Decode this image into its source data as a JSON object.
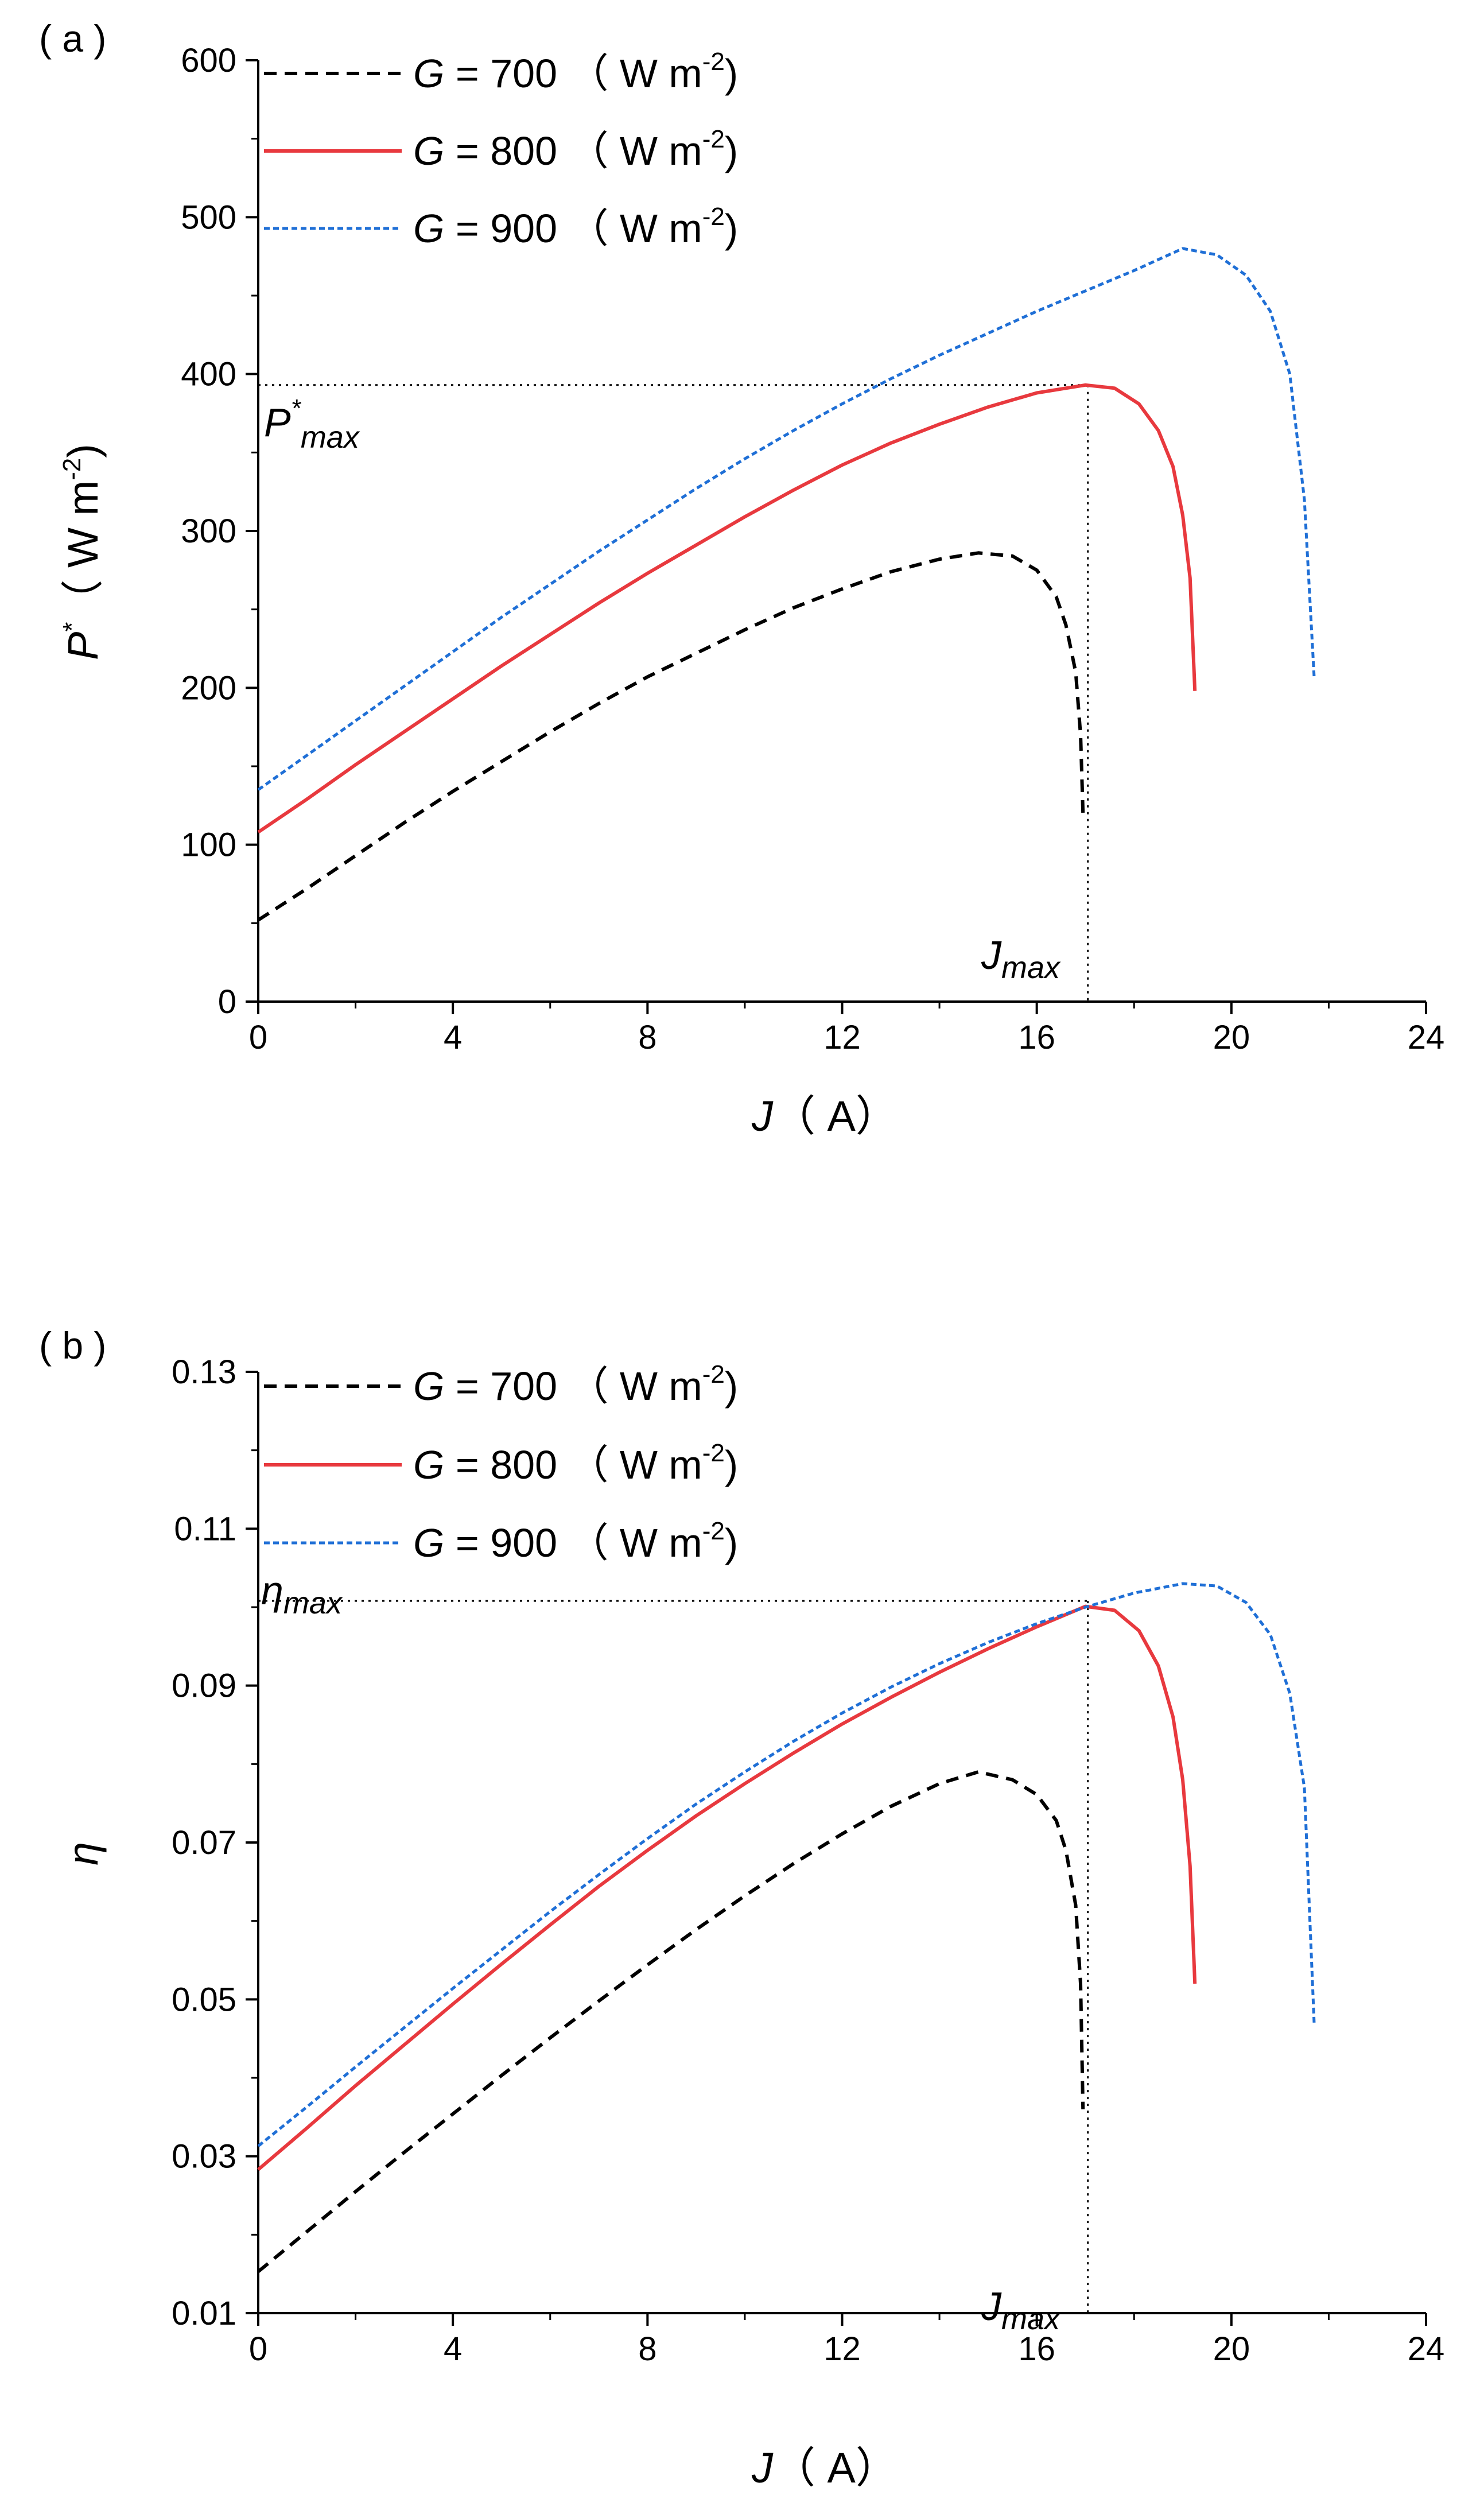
{
  "figure": {
    "panels": [
      {
        "label": "( a )",
        "xlabel_var": "J",
        "xlabel_unit": "（ A）",
        "ylabel_var": "P",
        "ylabel_sup": "*",
        "ylabel_unit_pre": "（ W m",
        "ylabel_unit_sup": "-2",
        "ylabel_unit_post": ")",
        "annotation_y": "P",
        "annotation_y_sup": "*",
        "annotation_y_sub": "max",
        "annotation_x": "J",
        "annotation_x_sub": "max"
      },
      {
        "label": "( b )",
        "xlabel_var": "J",
        "xlabel_unit": "（ A）",
        "ylabel_var": "η",
        "annotation_y": "η",
        "annotation_y_sub": "max",
        "annotation_x": "J",
        "annotation_x_sub": "max"
      }
    ],
    "legend": [
      {
        "var": "G",
        "text": " = 700 （ W m",
        "sup": "-2",
        "close": ")",
        "color": "#000000",
        "style": "dashed"
      },
      {
        "var": "G",
        "text": " = 800 （ W m",
        "sup": "-2",
        "close": ")",
        "color": "#e8393e",
        "style": "solid"
      },
      {
        "var": "G",
        "text": " = 900 （ W m",
        "sup": "-2",
        "close": ")",
        "color": "#1f6fd6",
        "style": "dotted"
      }
    ]
  },
  "chart_data": [
    {
      "type": "line",
      "title": "(a)",
      "xlabel": "J (A)",
      "ylabel": "P* (W m-2)",
      "xlim": [
        0,
        24
      ],
      "ylim": [
        0,
        600
      ],
      "xticks": [
        0,
        4,
        8,
        12,
        16,
        20,
        24
      ],
      "yticks": [
        0,
        100,
        200,
        300,
        400,
        500,
        600
      ],
      "ytick_labels": [
        "0",
        "100",
        "200",
        "300",
        "400",
        "500",
        "600"
      ],
      "series": [
        {
          "name": "G = 700 (W m-2)",
          "color": "#000000",
          "style": "dashed",
          "x": [
            0,
            1,
            2,
            3,
            4,
            5,
            6,
            7,
            8,
            9,
            10,
            11,
            12,
            13,
            14,
            14.8,
            15.5,
            16,
            16.4,
            16.6,
            16.8,
            16.9,
            16.95
          ],
          "y": [
            52,
            72,
            93,
            114,
            134,
            153,
            172,
            190,
            207,
            222,
            237,
            251,
            263,
            274,
            282,
            286,
            284,
            275,
            258,
            240,
            210,
            170,
            120
          ]
        },
        {
          "name": "G = 800 (W m-2)",
          "color": "#e8393e",
          "style": "solid",
          "x": [
            0,
            1,
            2,
            3,
            4,
            5,
            6,
            7,
            8,
            9,
            10,
            11,
            12,
            13,
            14,
            15,
            16,
            17,
            17.6,
            18.1,
            18.5,
            18.8,
            19.0,
            19.15,
            19.25
          ],
          "y": [
            108,
            129,
            151,
            172,
            193,
            214,
            234,
            254,
            273,
            291,
            309,
            326,
            342,
            356,
            368,
            379,
            388,
            393,
            391,
            381,
            364,
            341,
            310,
            270,
            198
          ]
        },
        {
          "name": "G = 900 (W m-2)",
          "color": "#1f6fd6",
          "style": "dotted",
          "x": [
            0,
            1,
            2,
            3,
            4,
            5,
            6,
            7,
            8,
            9,
            10,
            11,
            12,
            13,
            14,
            15,
            16,
            17,
            18,
            19,
            19.7,
            20.3,
            20.8,
            21.2,
            21.5,
            21.7
          ],
          "y": [
            135,
            157,
            179,
            201,
            223,
            245,
            266,
            287,
            307,
            327,
            346,
            364,
            381,
            397,
            412,
            426,
            440,
            453,
            466,
            480,
            476,
            463,
            440,
            400,
            320,
            207
          ]
        }
      ],
      "reference": {
        "x_max": 17.05,
        "y_max": 393
      }
    },
    {
      "type": "line",
      "title": "(b)",
      "xlabel": "J (A)",
      "ylabel": "η",
      "xlim": [
        0,
        24
      ],
      "ylim": [
        0.01,
        0.13
      ],
      "xticks": [
        0,
        4,
        8,
        12,
        16,
        20,
        24
      ],
      "yticks": [
        0.01,
        0.03,
        0.05,
        0.07,
        0.09,
        0.11,
        0.13
      ],
      "ytick_labels": [
        "0.01",
        "0.03",
        "0.05",
        "0.07",
        "0.09",
        "0.11",
        "0.13"
      ],
      "series": [
        {
          "name": "G = 700 (W m-2)",
          "color": "#000000",
          "style": "dashed",
          "x": [
            0,
            1,
            2,
            3,
            4,
            5,
            6,
            7,
            8,
            9,
            10,
            11,
            12,
            13,
            14,
            14.8,
            15.5,
            16,
            16.4,
            16.6,
            16.8,
            16.9,
            16.95
          ],
          "y": [
            0.0153,
            0.0204,
            0.0255,
            0.0305,
            0.0354,
            0.0403,
            0.0451,
            0.0498,
            0.0544,
            0.0589,
            0.0632,
            0.0673,
            0.0711,
            0.0746,
            0.0775,
            0.079,
            0.078,
            0.0761,
            0.0728,
            0.069,
            0.062,
            0.052,
            0.036
          ]
        },
        {
          "name": "G = 800 (W m-2)",
          "color": "#e8393e",
          "style": "solid",
          "x": [
            0,
            1,
            2,
            3,
            4,
            5,
            6,
            7,
            8,
            9,
            10,
            11,
            12,
            13,
            14,
            15,
            16,
            17,
            17.6,
            18.1,
            18.5,
            18.8,
            19.0,
            19.15,
            19.25
          ],
          "y": [
            0.0283,
            0.0336,
            0.039,
            0.0442,
            0.0494,
            0.0545,
            0.0595,
            0.0644,
            0.069,
            0.0734,
            0.0775,
            0.0814,
            0.0851,
            0.0885,
            0.0917,
            0.0947,
            0.0975,
            0.1001,
            0.0996,
            0.097,
            0.0925,
            0.086,
            0.078,
            0.067,
            0.052
          ]
        },
        {
          "name": "G = 900 (W m-2)",
          "color": "#1f6fd6",
          "style": "dotted",
          "x": [
            0,
            1,
            2,
            3,
            4,
            5,
            6,
            7,
            8,
            9,
            10,
            11,
            12,
            13,
            14,
            15,
            16,
            17,
            18,
            19,
            19.7,
            20.3,
            20.8,
            21.2,
            21.5,
            21.7
          ],
          "y": [
            0.0313,
            0.0363,
            0.0414,
            0.0464,
            0.0514,
            0.0563,
            0.0612,
            0.0659,
            0.0705,
            0.0749,
            0.079,
            0.0829,
            0.0865,
            0.0898,
            0.0928,
            0.0955,
            0.0979,
            0.1,
            0.1018,
            0.103,
            0.1027,
            0.1006,
            0.0965,
            0.089,
            0.077,
            0.047
          ]
        }
      ],
      "reference": {
        "x_max": 17.05,
        "y_max": 0.1008
      }
    }
  ]
}
